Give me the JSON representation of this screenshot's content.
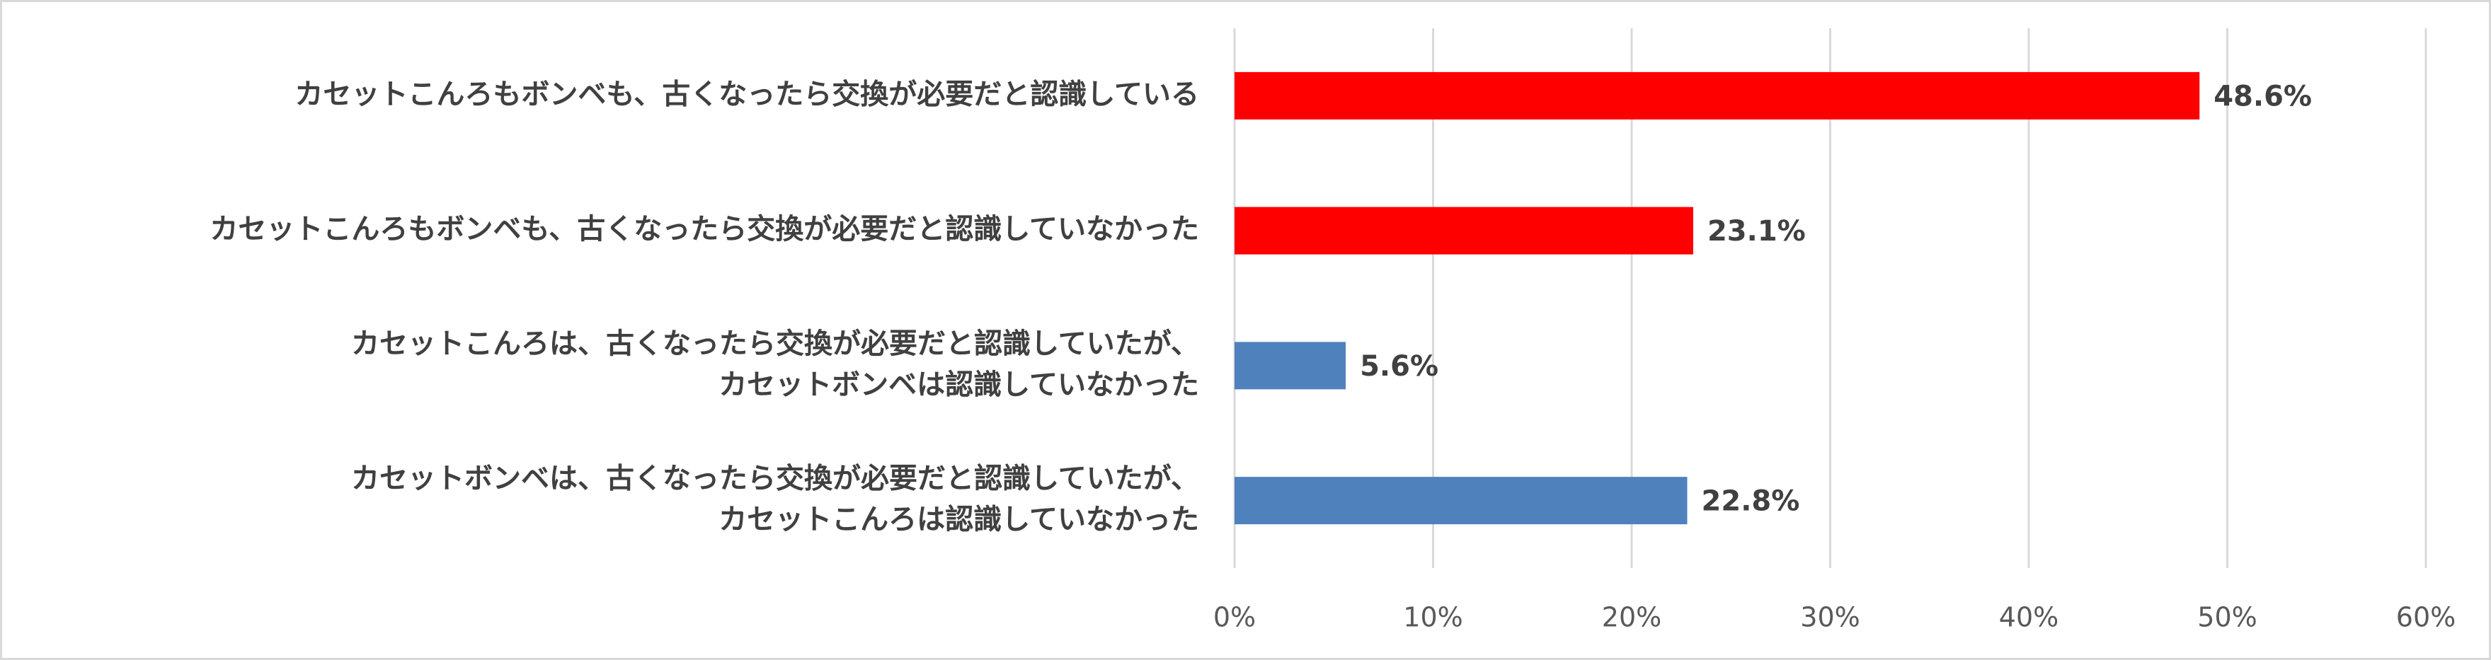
{
  "chart_data": {
    "type": "hbar",
    "categories": [
      [
        "カセットこんろもボンベも、古くなったら交換が必要だと認識している"
      ],
      [
        "カセットこんろもボンベも、古くなったら交換が必要だと認識していなかった"
      ],
      [
        "カセットこんろは、古くなったら交換が必要だと認識していたが、",
        "カセットボンベは認識していなかった"
      ],
      [
        "カセットボンベは、古くなったら交換が必要だと認識していたが、",
        "カセットこんろは認識していなかった"
      ]
    ],
    "values": [
      48.6,
      23.1,
      5.6,
      22.8
    ],
    "value_labels": [
      "48.6%",
      "23.1%",
      "5.6%",
      "22.8%"
    ],
    "colors": [
      "#ff0000",
      "#ff0000",
      "#4f81bd",
      "#4f81bd"
    ],
    "xlim": [
      0,
      60
    ],
    "xticks": [
      {
        "value": 0,
        "label": "0%"
      },
      {
        "value": 10,
        "label": "10%"
      },
      {
        "value": 20,
        "label": "20%"
      },
      {
        "value": 30,
        "label": "30%"
      },
      {
        "value": 40,
        "label": "40%"
      },
      {
        "value": 50,
        "label": "50%"
      },
      {
        "value": 60,
        "label": "60%"
      }
    ],
    "grid": true
  }
}
